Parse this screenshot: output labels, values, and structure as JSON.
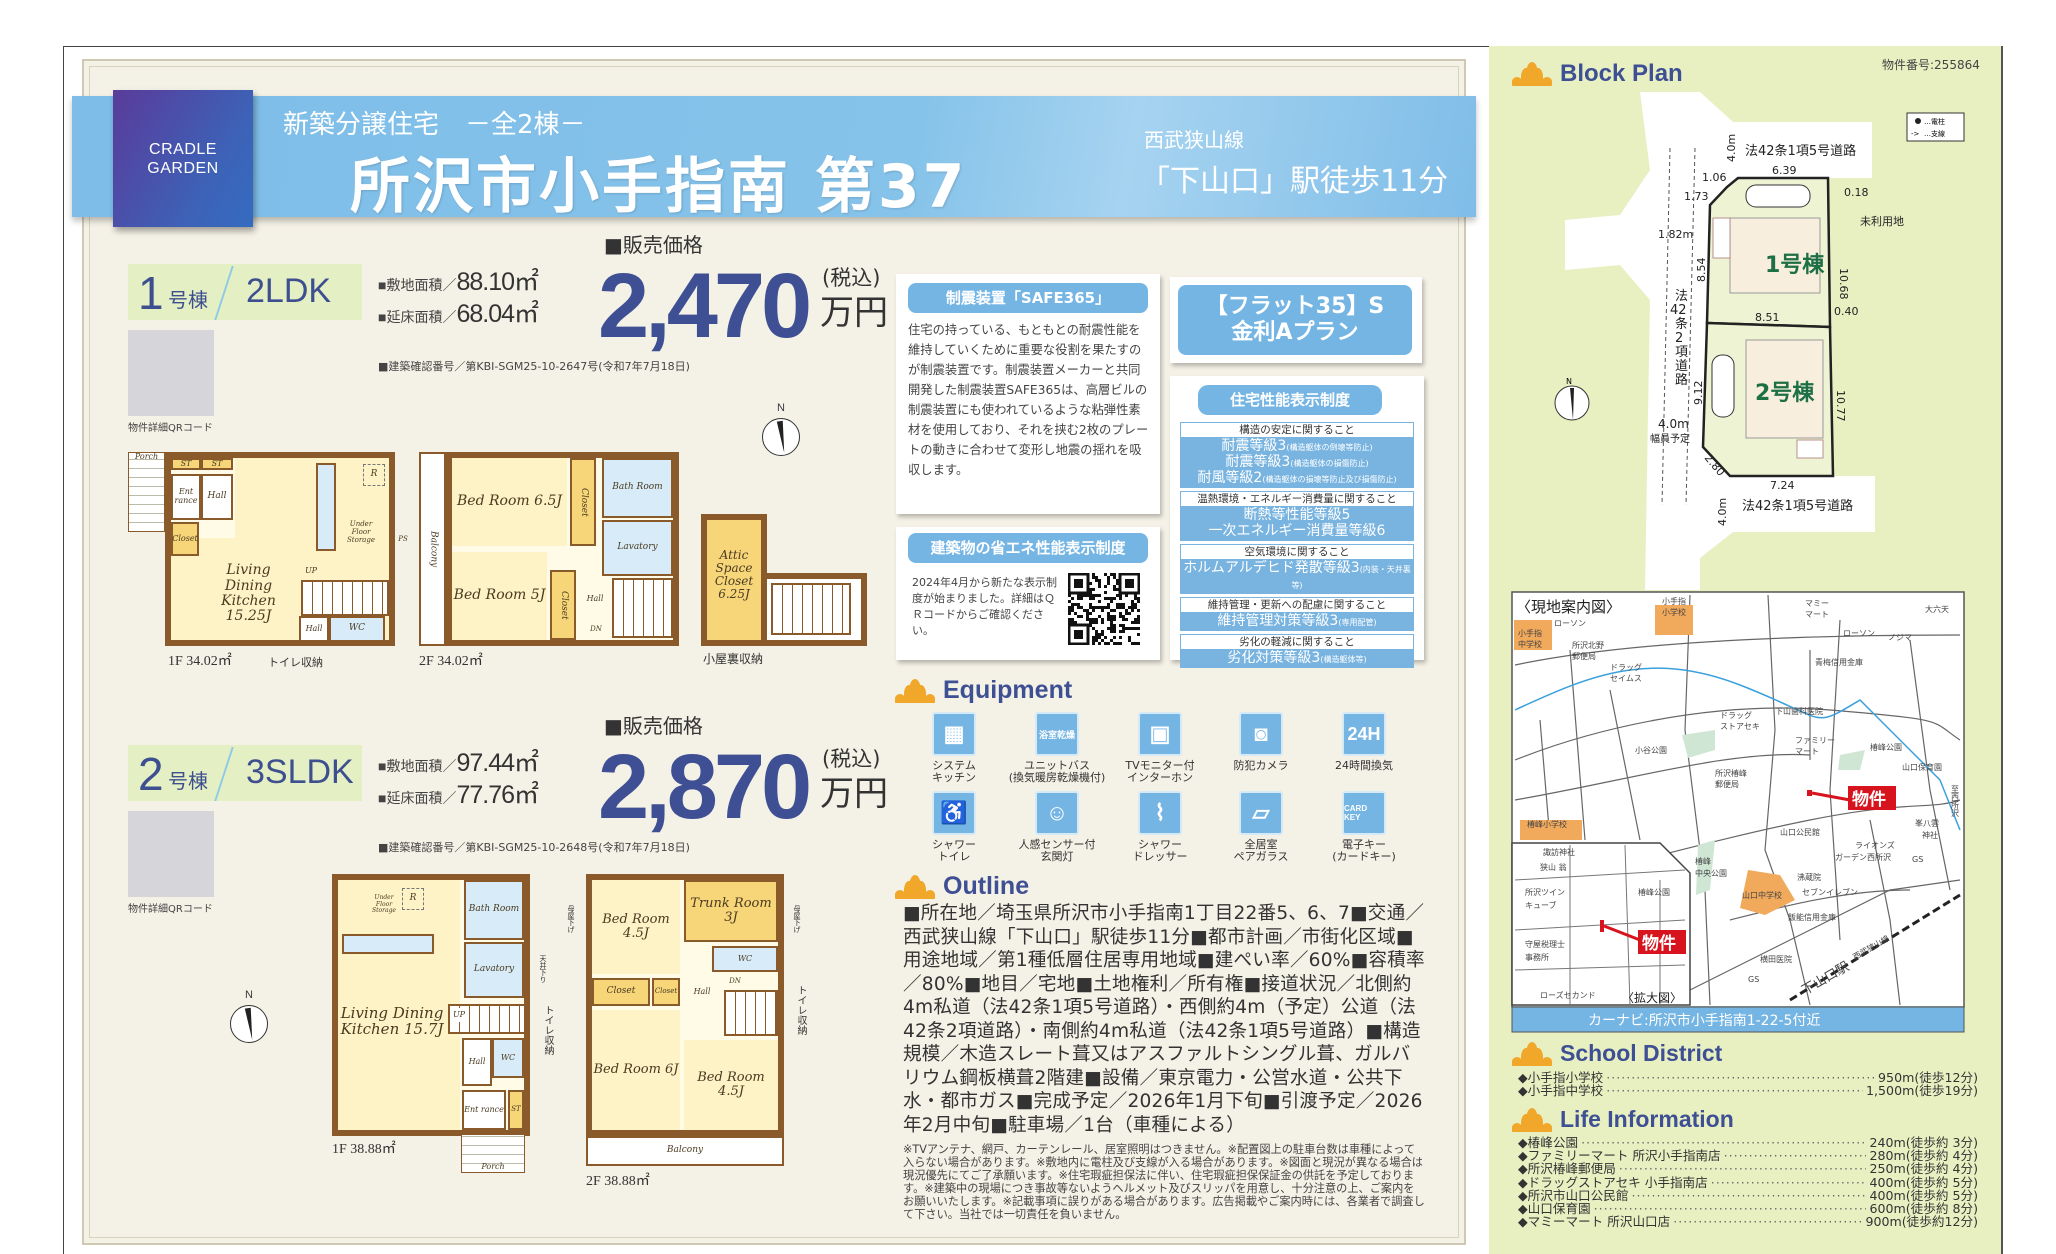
{
  "header": {
    "logo_line1": "CRADLE",
    "logo_line2": "GARDEN",
    "subtitle": "新築分譲住宅　－全2棟－",
    "title": "所沢市小手指南 第37",
    "line": "西武狭山線",
    "station": "「下山口」駅徒歩11分"
  },
  "units": [
    {
      "number": "1",
      "suffix": "号棟",
      "layout": "2LDK",
      "land_label": "■敷地面積",
      "land_area": "88.10㎡",
      "floor_label": "■延床面積",
      "floor_area": "68.04㎡",
      "permit": "■建築確認番号／第KBI-SGM25-10-2647号(令和7年7月18日)",
      "price_heading": "■販売価格",
      "price": "2,470",
      "tax": "(税込)",
      "price_unit": "万円",
      "qr_label": "物件詳細QRコード",
      "floors": {
        "f1_label": "1F 34.02㎡",
        "f2_label": "2F 34.02㎡",
        "attic_label": "小屋裏収納",
        "toilet_storage": "トイレ収納",
        "rooms": {
          "porch": "Porch",
          "st": "ST",
          "entrance": "Ent rance",
          "hall": "Hall",
          "closet": "Closet",
          "ldk": "Living Dining Kitchen 15.25J",
          "underfloor": "Under Floor Storage",
          "r": "R",
          "up": "UP",
          "wc": "WC",
          "ps": "PS",
          "balcony": "Balcony",
          "bed1": "Bed Room 6.5J",
          "bed2": "Bed Room 5J",
          "bath": "Bath Room",
          "lavatory": "Lavatory",
          "w": "W",
          "dn": "DN",
          "attic": "Attic Space Closet 6.25J"
        }
      }
    },
    {
      "number": "2",
      "suffix": "号棟",
      "layout": "3SLDK",
      "land_label": "■敷地面積",
      "land_area": "97.44㎡",
      "floor_label": "■延床面積",
      "floor_area": "77.76㎡",
      "permit": "■建築確認番号／第KBI-SGM25-10-2648号(令和7年7月18日)",
      "price_heading": "■販売価格",
      "price": "2,870",
      "tax": "(税込)",
      "price_unit": "万円",
      "qr_label": "物件詳細QRコード",
      "floors": {
        "f1_label": "1F 38.88㎡",
        "f2_label": "2F 38.88㎡",
        "toilet_storage": "トイレ収納",
        "ceiling_lower": "天井下り",
        "beam_lower": "母屋下げ",
        "rooms": {
          "underfloor": "Under Floor Storage",
          "r": "R",
          "ldk": "Living Dining Kitchen 15.7J",
          "bath": "Bath Room",
          "lavatory": "Lavatory",
          "w": "W",
          "up": "UP",
          "hall": "Hall",
          "wc": "WC",
          "entrance": "Ent rance",
          "st": "ST",
          "porch": "Porch",
          "bed1": "Bed Room 4.5J",
          "trunk": "Trunk Room 3J",
          "closet": "Closet",
          "bed2": "Bed Room 6J",
          "bed3": "Bed Room 4.5J",
          "dn": "DN",
          "balcony": "Balcony"
        }
      }
    }
  ],
  "compass_label": "N",
  "safe365": {
    "title": "制震装置「SAFE365」",
    "body": "住宅の持っている、もともとの耐震性能を維持していくために重要な役割を果たすのが制震装置です。制震装置メーカーと共同開発した制震装置SAFE365は、高層ビルの制震装置にも使われているような粘弾性素材を使用しており、それを挟む2枚のプレートの動きに合わせて変形し地震の揺れを吸収します。"
  },
  "flat35": {
    "line1": "【フラット35】S",
    "line2": "金利Aプラン"
  },
  "performance": {
    "title": "住宅性能表示制度",
    "groups": [
      {
        "heading": "構造の安定に関すること",
        "items": [
          {
            "main": "耐震等級3",
            "note": "(構造躯体の倒壊等防止)"
          },
          {
            "main": "耐震等級3",
            "note": "(構造躯体の損傷防止)"
          },
          {
            "main": "耐風等級2",
            "note": "(構造躯体の損壊等防止及び損傷防止)"
          }
        ]
      },
      {
        "heading": "温熱環境・エネルギー消費量に関すること",
        "items": [
          {
            "main": "断熱等性能等級5",
            "note": ""
          },
          {
            "main": "一次エネルギー消費量等級6",
            "note": ""
          }
        ]
      },
      {
        "heading": "空気環境に関すること",
        "items": [
          {
            "main": "ホルムアルデヒド発散等級3",
            "note": "(内装・天井裏等)"
          }
        ]
      },
      {
        "heading": "維持管理・更新への配慮に関すること",
        "items": [
          {
            "main": "維持管理対策等級3",
            "note": "(専用配管)"
          }
        ]
      },
      {
        "heading": "劣化の軽減に関すること",
        "items": [
          {
            "main": "劣化対策等級3",
            "note": "(構造躯体等)"
          }
        ]
      }
    ]
  },
  "energy_label": {
    "title": "建築物の省エネ性能表示制度",
    "body": "2024年4月から新たな表示制度が始まりました。詳細はＱＲコードからご確認ください。"
  },
  "equipment": {
    "heading": "Equipment",
    "items": [
      {
        "label1": "システム",
        "label2": "キッチン",
        "icon": "kitchen-icon"
      },
      {
        "label1": "ユニットバス",
        "label2": "(換気暖房乾燥機付)",
        "icon": "bath-dryer-icon",
        "icon_text": "浴室乾燥"
      },
      {
        "label1": "TVモニター付",
        "label2": "インターホン",
        "icon": "intercom-icon"
      },
      {
        "label1": "防犯カメラ",
        "label2": "",
        "icon": "security-camera-icon"
      },
      {
        "label1": "24時間換気",
        "label2": "",
        "icon": "ventilation-24h-icon",
        "icon_text": "24H"
      },
      {
        "label1": "シャワー",
        "label2": "トイレ",
        "icon": "toilet-icon"
      },
      {
        "label1": "人感センサー付",
        "label2": "玄関灯",
        "icon": "motion-sensor-light-icon"
      },
      {
        "label1": "シャワー",
        "label2": "ドレッサー",
        "icon": "shower-icon"
      },
      {
        "label1": "全居室",
        "label2": "ペアガラス",
        "icon": "pair-glass-window-icon"
      },
      {
        "label1": "電子キー",
        "label2": "(カードキー)",
        "icon": "card-key-icon",
        "icon_text": "CARD KEY"
      }
    ]
  },
  "outline": {
    "heading": "Outline",
    "text": "■所在地／埼玉県所沢市小手指南1丁目22番5、6、7■交通／西武狭山線「下山口」駅徒歩11分■都市計画／市街化区域■用途地域／第1種低層住居専用地域■建ぺい率／60%■容積率／80%■地目／宅地■土地権利／所有権■接道状況／北側約4m私道（法42条1項5号道路）・西側約4m（予定）公道（法42条2項道路）・南側約4m私道（法42条1項5号道路）■構造規模／木造スレート葺又はアスファルトシングル葺、ガルバリウム鋼板横葺2階建■設備／東京電力・公営水道・公共下水・都市ガス■完成予定／2026年1月下旬■引渡予定／2026年2月中旬■駐車場／1台（車種による）",
    "notes": "※TVアンテナ、網戸、カーテンレール、居室照明はつきません。※配置図上の駐車台数は車種によって入らない場合があります。※敷地内に電柱及び支線が入る場合があります。※図面と現況が異なる場合は現況優先にてご了承願います。※住宅瑕疵担保法に伴い、住宅瑕疵担保保証金の供託を予定しております。※建築中の現場につき事故等ないようヘルメット及びスリッパを用意し、十分注意の上、ご案内をお願いいたします。※記載事項に誤りがある場合があります。広告掲載やご案内時には、各業者で調査して下さい。当社では一切責任を負いません。"
  },
  "block_plan": {
    "heading": "Block Plan",
    "property_number": "物件番号:255864",
    "legend_pole": "…電柱",
    "legend_guy": "…支線",
    "north_road": "法42条1項5号道路",
    "south_road": "法42条1項5号道路",
    "west_road": [
      "法",
      "42",
      "条",
      "2",
      "項",
      "道",
      "路"
    ],
    "unused_land": "未利用地",
    "unit1": "1号棟",
    "unit2": "2号棟",
    "road_width_planned": "幅員予定",
    "dims": {
      "north_width": "4.0m",
      "top": "6.39",
      "c1": "1.06",
      "c2": "1.73",
      "r1": "0.18",
      "setback": "1.82m",
      "w1": "8.54",
      "e1": "10.68",
      "mid": "8.51",
      "r2": "0.40",
      "w2": "9.12",
      "e2": "10.77",
      "west_width": "4.0m",
      "corner": "2.80",
      "bottom": "7.24",
      "south_width": "4.0m"
    }
  },
  "map": {
    "title": "〈現地案内図〉",
    "inset_title": "〈拡大図〉",
    "property_label": "物件",
    "car_navi": "カーナビ:所沢市小手指南1-22-5付近",
    "labels": [
      "小手指",
      "小学校",
      "小手指",
      "中学校",
      "ローソン",
      "所沢北野",
      "郵便局",
      "ドラッグ",
      "セイムス",
      "マミー",
      "マート",
      "ローソン",
      "ノジマ",
      "大六天",
      "青梅信用金庫",
      "ドラッグ",
      "ストアセキ",
      "下山歯科医院",
      "小谷公園",
      "ファミリー",
      "マート",
      "椿峰公園",
      "山口保育園",
      "所沢椿峰",
      "郵便局",
      "至西所沢",
      "椿峰小学校",
      "山口公民館",
      "峯八雲",
      "神社",
      "ライオンズ",
      "ガーデン西所沢",
      "GS",
      "椿峰",
      "中央公園",
      "沸蔵院",
      "山口中学校",
      "セブンイレブン",
      "飯能信用金庫",
      "横田医院",
      "GS",
      "下山口駅",
      "西武狭山線",
      "諏訪神社",
      "狭山 翁",
      "所沢ツイン",
      "キューブ",
      "椿峰公園",
      "守屋税理士",
      "事務所",
      "ローズセカンド"
    ]
  },
  "school_district": {
    "heading": "School District",
    "items": [
      {
        "name": "◆小手指小学校",
        "distance": "950m(徒歩12分)"
      },
      {
        "name": "◆小手指中学校",
        "distance": "1,500m(徒歩19分)"
      }
    ]
  },
  "life_information": {
    "heading": "Life Information",
    "items": [
      {
        "name": "◆椿峰公園",
        "distance": "240m(徒歩約 3分)"
      },
      {
        "name": "◆ファミリーマート 所沢小手指南店",
        "distance": "280m(徒歩約 4分)"
      },
      {
        "name": "◆所沢椿峰郵便局",
        "distance": "250m(徒歩約 4分)"
      },
      {
        "name": "◆ドラッグストアセキ 小手指南店",
        "distance": "400m(徒歩約 5分)"
      },
      {
        "name": "◆所沢市山口公民館",
        "distance": "400m(徒歩約 5分)"
      },
      {
        "name": "◆山口保育園",
        "distance": "600m(徒歩約 8分)"
      },
      {
        "name": "◆マミーマート 所沢山口店",
        "distance": "900m(徒歩約12分)"
      }
    ]
  },
  "colors": {
    "accent_blue": "#75b5e4",
    "title_navy": "#3e4f94",
    "wall_brown": "#8a5a2b",
    "green_panel": "#e8f0c2",
    "cream_panel": "#f4f1e6",
    "property_red": "#d7141e",
    "lotus_orange": "#f0a72a"
  }
}
